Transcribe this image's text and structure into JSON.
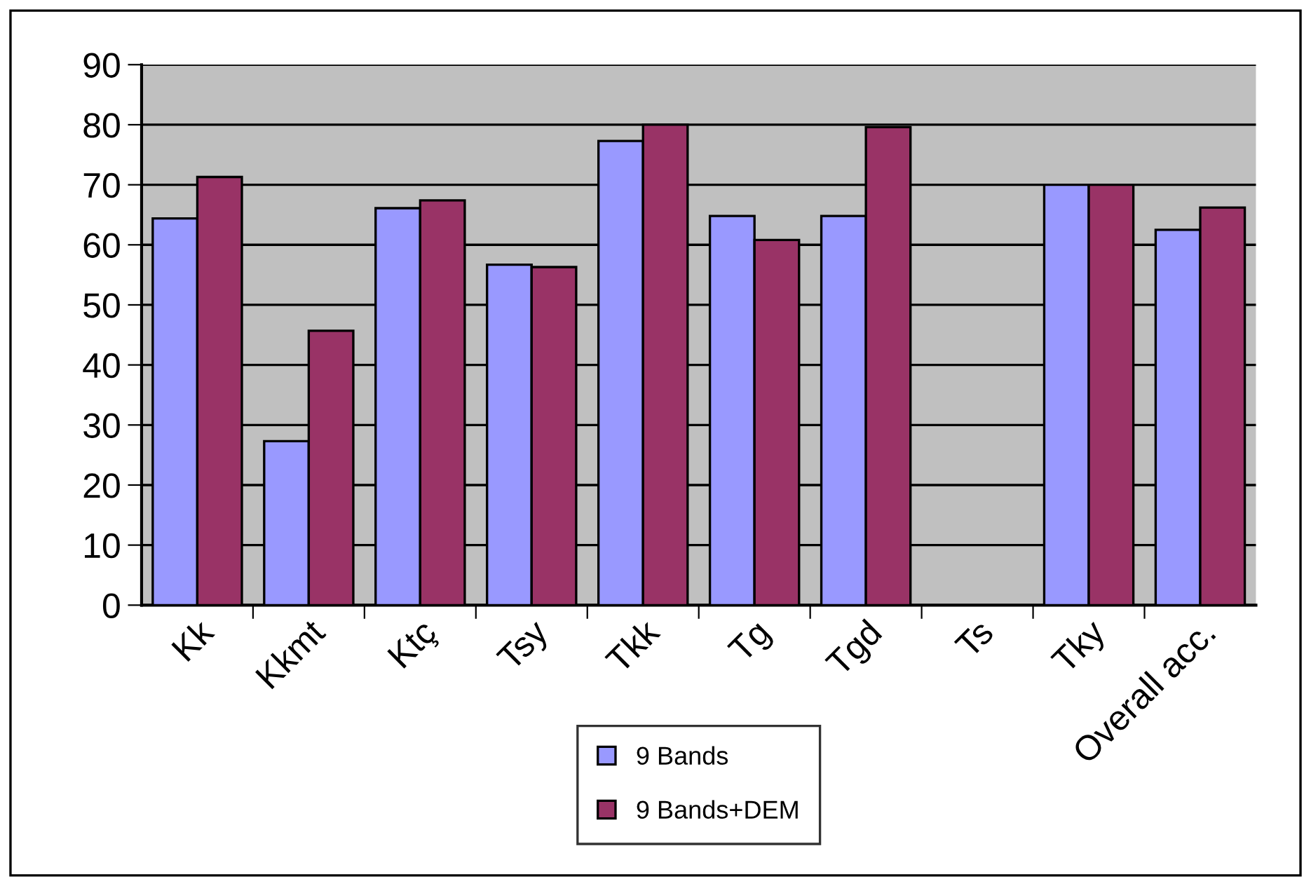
{
  "chart_data": {
    "type": "bar",
    "categories": [
      "Kk",
      "Kkmt",
      "Ktç",
      "Tsy",
      "Tkk",
      "Tg",
      "Tgd",
      "Ts",
      "Tky",
      "Overall acc."
    ],
    "series": [
      {
        "name": "9 Bands",
        "color": "#9999ff",
        "values": [
          64.4,
          27.3,
          66.1,
          56.7,
          77.3,
          64.8,
          64.8,
          null,
          70,
          62.5
        ]
      },
      {
        "name": "9 Bands+DEM",
        "color": "#993366",
        "values": [
          71.3,
          45.7,
          67.4,
          56.3,
          80,
          60.8,
          79.6,
          null,
          70,
          66.2
        ]
      }
    ],
    "ylim": [
      0,
      90
    ],
    "yticks": [
      0,
      10,
      20,
      30,
      40,
      50,
      60,
      70,
      80,
      90
    ],
    "grid": "y",
    "legend": "bottom"
  }
}
